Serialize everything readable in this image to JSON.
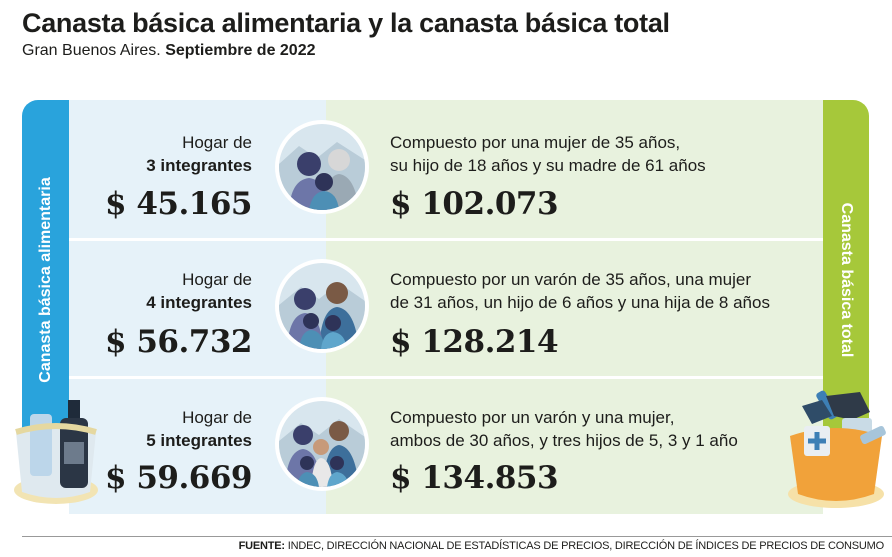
{
  "header": {
    "title": "Canasta básica alimentaria y la canasta básica total",
    "subtitle_region": "Gran Buenos Aires.",
    "subtitle_date": "Septiembre de 2022"
  },
  "sidebars": {
    "left_label": "Canasta básica alimentaria",
    "right_label": "Canasta básica total",
    "left_color": "#29a3dc",
    "right_color": "#a6c83a"
  },
  "rows": [
    {
      "household_prefix": "Hogar de",
      "household_size": "3 integrantes",
      "cba_value": "$ 45.165",
      "description_line1": "Compuesto por una mujer de 35 años,",
      "description_line2": "su hijo de 18 años y su madre de 61 años",
      "cbt_value": "$ 102.073",
      "icon": "family-three-icon"
    },
    {
      "household_prefix": "Hogar de",
      "household_size": "4 integrantes",
      "cba_value": "$ 56.732",
      "description_line1": "Compuesto por un varón de 35 años, una mujer",
      "description_line2": "de 31 años, un hijo de 6 años y una hija de 8 años",
      "cbt_value": "$ 128.214",
      "icon": "family-four-icon"
    },
    {
      "household_prefix": "Hogar de",
      "household_size": "5 integrantes",
      "cba_value": "$ 59.669",
      "description_line1": "Compuesto por un varón y una mujer,",
      "description_line2": "ambos de 30 años, y tres hijos de 5, 3 y 1 año",
      "cbt_value": "$ 134.853",
      "icon": "family-five-icon"
    }
  ],
  "footer": {
    "source_label": "FUENTE:",
    "source_text": "INDEC, DIRECCIÓN NACIONAL DE ESTADÍSTICAS DE PRECIOS, DIRECCIÓN DE ÍNDICES DE PRECIOS DE CONSUMO"
  }
}
